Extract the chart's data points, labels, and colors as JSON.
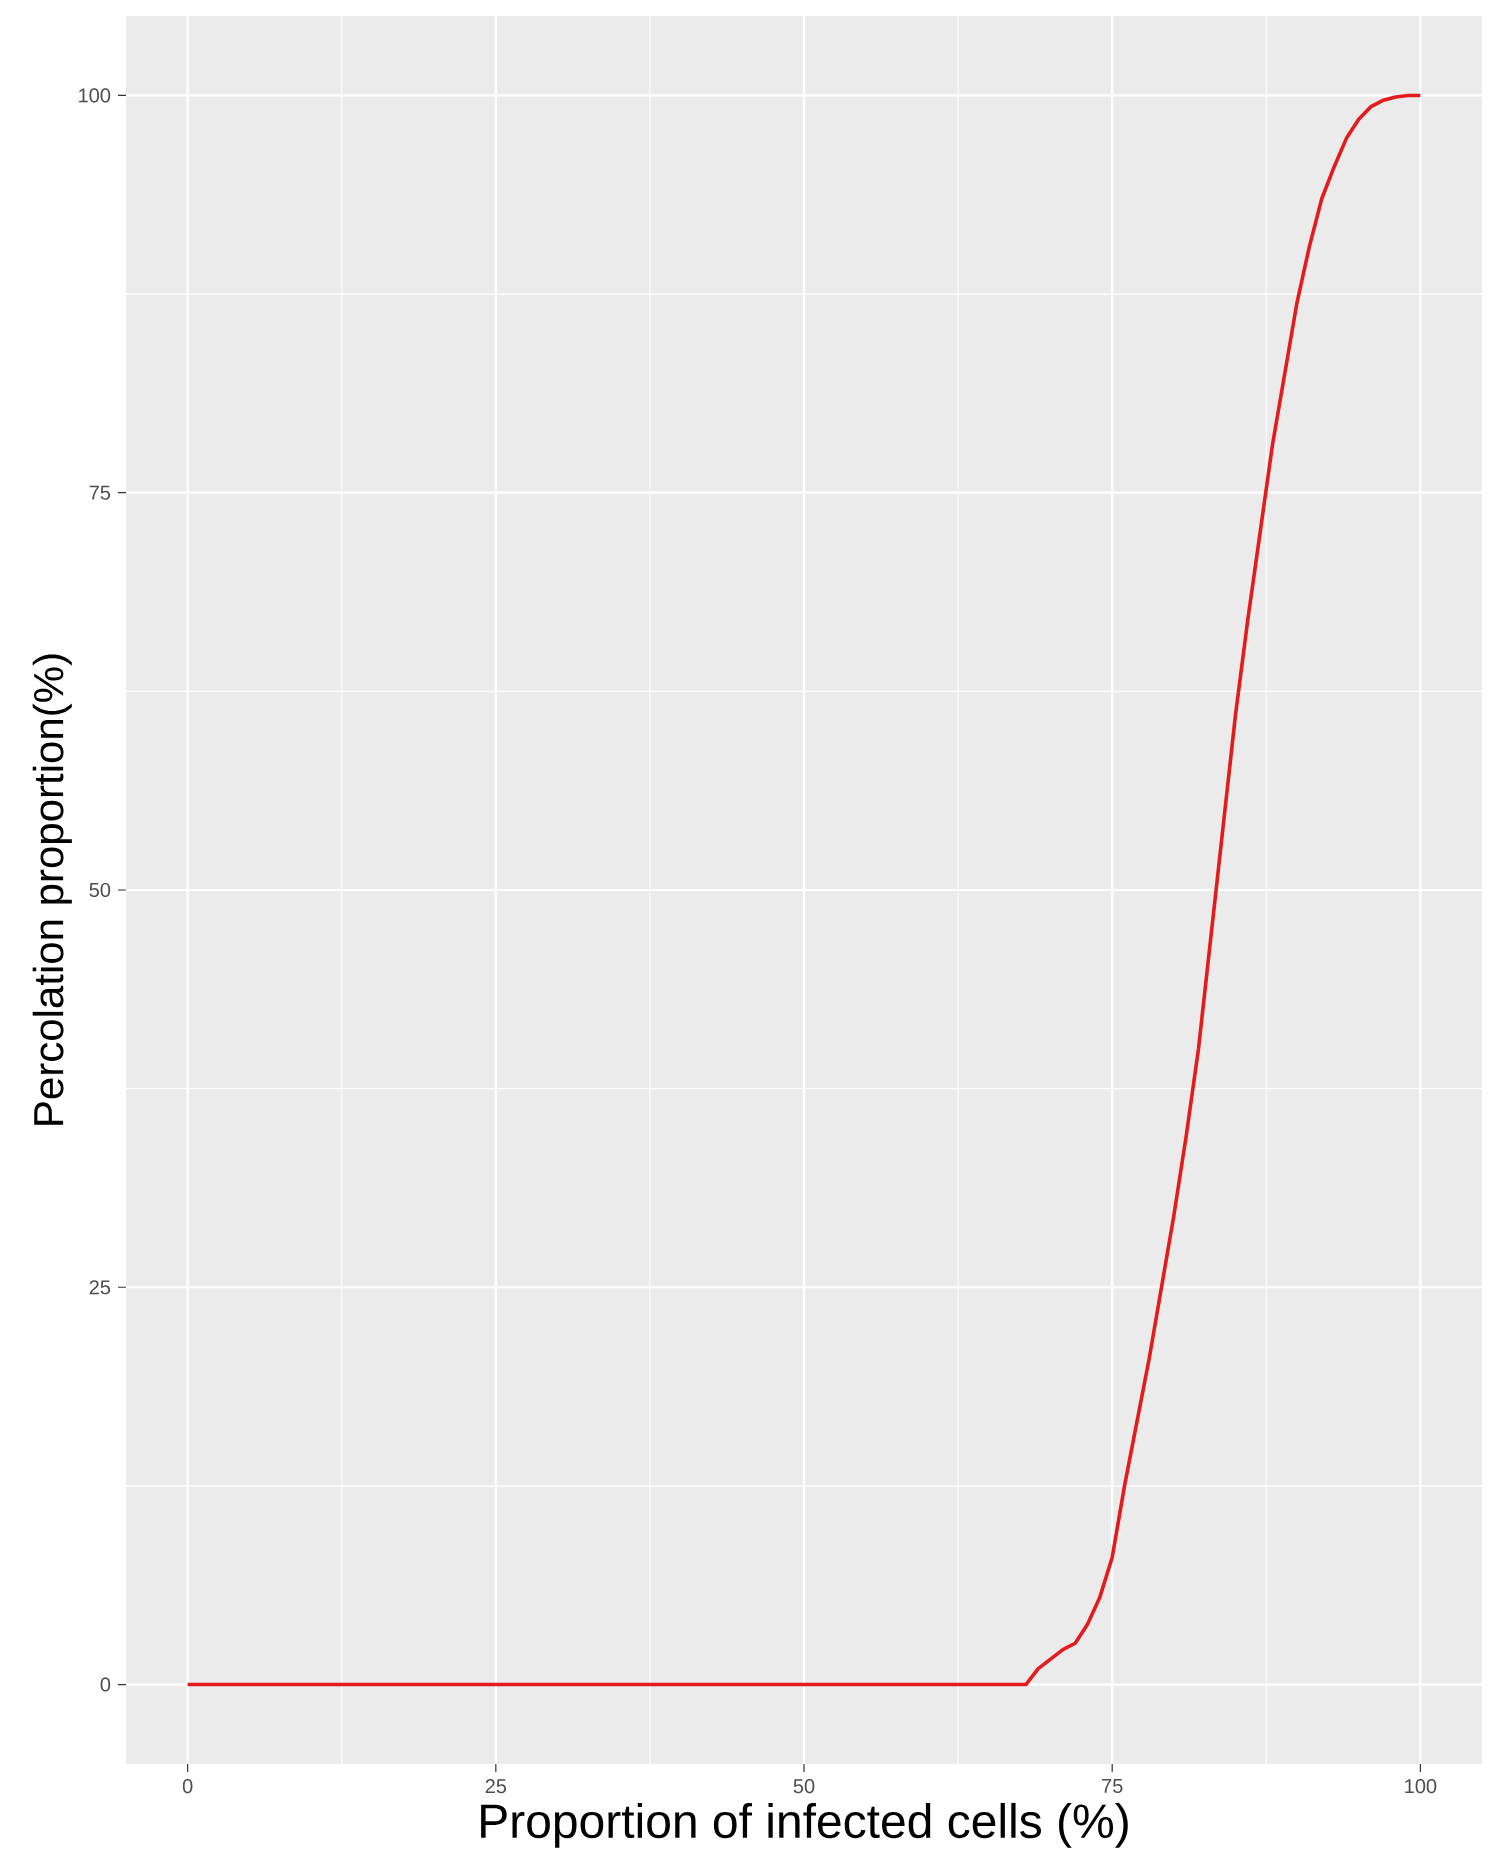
{
  "chart_data": {
    "type": "line",
    "xlabel": "Proportion of infected cells (%)",
    "ylabel": "Percolation proportion(%)",
    "x": [
      0,
      68,
      69,
      70,
      71,
      72,
      73,
      74,
      75,
      76,
      77,
      78,
      79,
      80,
      81,
      82,
      83,
      84,
      85,
      86,
      87,
      88,
      89,
      90,
      91,
      92,
      93,
      94,
      95,
      96,
      97,
      98,
      99,
      100
    ],
    "series": [
      {
        "color": "#e41a1c",
        "values": [
          0,
          0,
          1,
          1.6,
          2.2,
          2.6,
          3.8,
          5.5,
          8,
          12.5,
          16.5,
          20.5,
          25,
          29.5,
          34.5,
          40,
          47,
          54,
          61,
          67,
          72.5,
          78,
          82.5,
          87,
          90.5,
          93.5,
          95.5,
          97.3,
          98.5,
          99.3,
          99.7,
          99.9,
          100,
          100
        ]
      }
    ],
    "xlim": [
      -5,
      105
    ],
    "ylim": [
      -5,
      105
    ],
    "xticks": [
      0,
      25,
      50,
      75,
      100
    ],
    "yticks": [
      0,
      25,
      50,
      75,
      100
    ],
    "grid": true,
    "line_style": "solid",
    "marker": "none"
  }
}
